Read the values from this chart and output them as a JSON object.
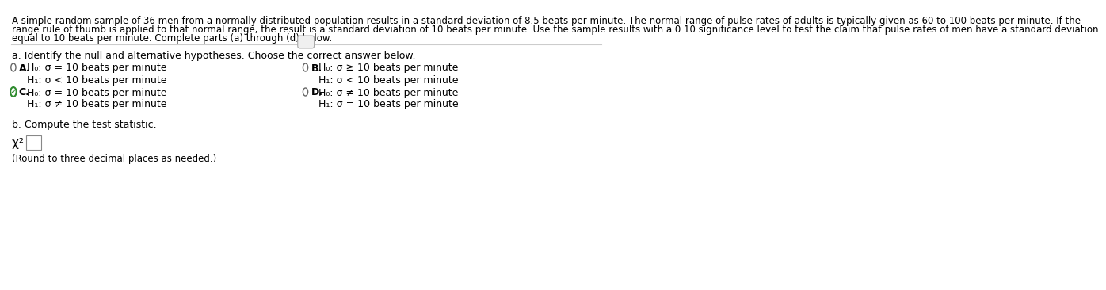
{
  "bg_color": "#ffffff",
  "text_color": "#000000",
  "gray_text": "#555555",
  "header_text": "A simple random sample of 36 men from a normally distributed population results in a standard deviation of 8.5 beats per minute. The normal range of pulse rates of adults is typically given as 60 to 100 beats per minute. If the\nrange rule of thumb is applied to that normal range, the result is a standard deviation of 10 beats per minute. Use the sample results with a 0.10 significance level to test the claim that pulse rates of men have a standard deviation\nequal to 10 beats per minute. Complete parts (a) through (d) below.",
  "part_a_label": "a. Identify the null and alternative hypotheses. Choose the correct answer below.",
  "option_A_label": "A.",
  "option_A_H0": "H₀: σ = 10 beats per minute",
  "option_A_H1": "H₁: σ < 10 beats per minute",
  "option_B_label": "B.",
  "option_B_H0": "H₀: σ ≥ 10 beats per minute",
  "option_B_H1": "H₁: σ < 10 beats per minute",
  "option_C_label": "C.",
  "option_C_H0": "H₀: σ = 10 beats per minute",
  "option_C_H1": "H₁: σ ≠ 10 beats per minute",
  "option_D_label": "D.",
  "option_D_H0": "H₀: σ ≠ 10 beats per minute",
  "option_D_H1": "H₁: σ = 10 beats per minute",
  "part_b_label": "b. Compute the test statistic.",
  "chi_sq_label": "χ² =",
  "round_note": "(Round to three decimal places as needed.)",
  "dots": ".....",
  "checkmark_color": "#2e8b2e",
  "radio_color": "#666666",
  "line_color": "#cccccc",
  "font_size_header": 8.5,
  "font_size_body": 9.0,
  "font_size_chi": 10.0
}
